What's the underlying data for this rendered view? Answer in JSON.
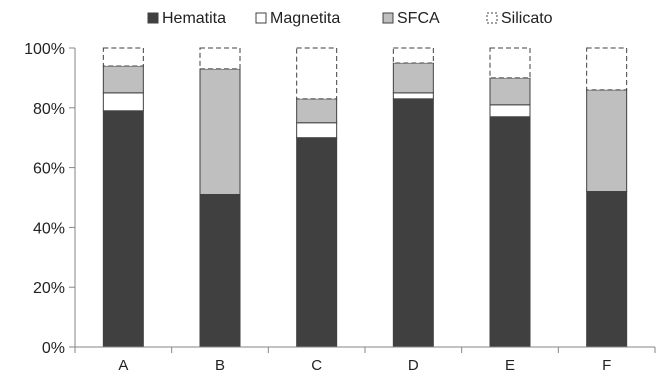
{
  "chart_data": {
    "type": "bar",
    "stacked": true,
    "categories": [
      "A",
      "B",
      "C",
      "D",
      "E",
      "F"
    ],
    "series": [
      {
        "name": "Hematita",
        "values": [
          79,
          51,
          70,
          83,
          77,
          52
        ],
        "color": "#404040",
        "pattern": "solid"
      },
      {
        "name": "Magnetita",
        "values": [
          6,
          0,
          5,
          2,
          4,
          0
        ],
        "color": "#ffffff",
        "pattern": "solid"
      },
      {
        "name": "SFCA",
        "values": [
          9,
          42,
          8,
          10,
          9,
          34
        ],
        "color": "#bfbfbf",
        "pattern": "solid"
      },
      {
        "name": "Silicato",
        "values": [
          6,
          7,
          17,
          5,
          10,
          14
        ],
        "color": "#ffffff",
        "pattern": "dashed"
      }
    ],
    "title": "",
    "xlabel": "",
    "ylabel": "",
    "ylim": [
      0,
      100
    ],
    "yticks": [
      0,
      20,
      40,
      60,
      80,
      100
    ],
    "ytick_labels": [
      "0%",
      "20%",
      "40%",
      "60%",
      "80%",
      "100%"
    ],
    "grid": false,
    "legend_position": "top"
  }
}
